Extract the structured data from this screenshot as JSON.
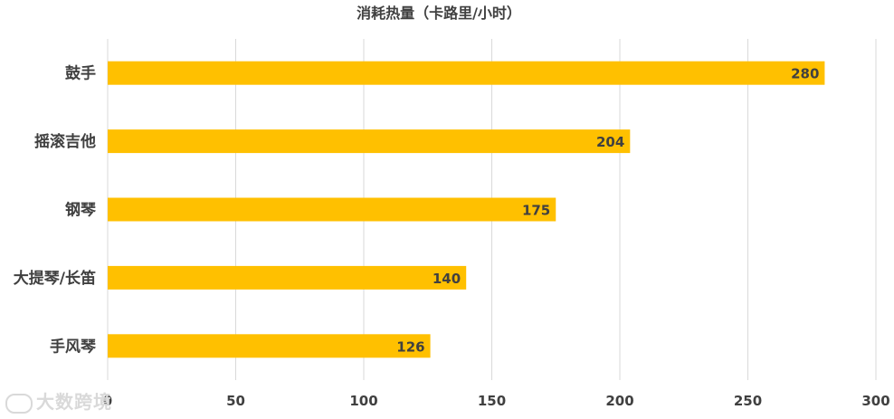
{
  "chart_data": {
    "type": "bar",
    "orientation": "horizontal",
    "title": "消耗热量（卡路里/小时）",
    "categories": [
      "鼓手",
      "摇滚吉他",
      "钢琴",
      "大提琴/长笛",
      "手风琴"
    ],
    "values": [
      280,
      204,
      175,
      140,
      126
    ],
    "xlim": [
      0,
      300
    ],
    "xticks": [
      "0",
      "50",
      "100",
      "150",
      "200",
      "250",
      "300"
    ],
    "grid": true,
    "bar_color": "#FFC000",
    "data_labels": true
  },
  "watermark": "大数跨境"
}
